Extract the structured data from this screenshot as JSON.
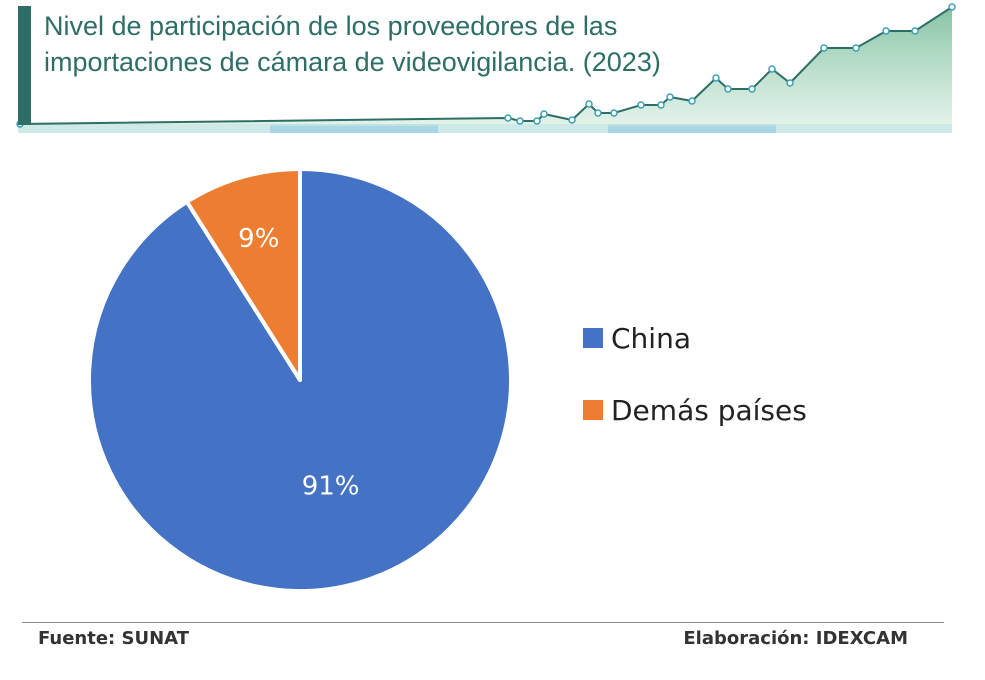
{
  "header": {
    "title": "Nivel de participación de los proveedores de las importaciones de cámara de videovigilancia. (2023)"
  },
  "chart_data": {
    "type": "pie",
    "title": "Nivel de participación de los proveedores de las importaciones de cámara de videovigilancia. (2023)",
    "categories": [
      "China",
      "Demás países"
    ],
    "values": [
      91,
      9
    ],
    "data_labels": [
      "91%",
      "9%"
    ],
    "colors": [
      "#4472c4",
      "#ed7d31"
    ],
    "legend_position": "right"
  },
  "legend": {
    "items": [
      {
        "label": "China",
        "color": "#4472c4"
      },
      {
        "label": "Demás países",
        "color": "#ed7d31"
      }
    ]
  },
  "footer": {
    "source": "Fuente: SUNAT",
    "credit": "Elaboración: IDEXCAM"
  },
  "colors": {
    "title_accent": "#2e6e66",
    "deco_line": "#2e6e66",
    "deco_fill": "#8fcbb0"
  }
}
